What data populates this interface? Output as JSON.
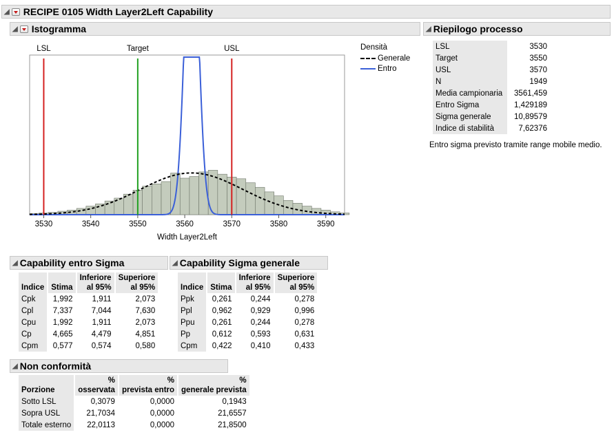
{
  "report": {
    "title": "RECIPE 0105 Width Layer2Left Capability"
  },
  "histogram": {
    "title": "Istogramma",
    "legend": {
      "title": "Densità",
      "items": [
        {
          "label": "Generale",
          "style": "dashed",
          "color": "#000000"
        },
        {
          "label": "Entro",
          "style": "solid",
          "color": "#3a5fd8"
        }
      ]
    },
    "ref_lines": {
      "LSL": {
        "label": "LSL",
        "value": 3530,
        "color": "#d42020"
      },
      "Target": {
        "label": "Target",
        "value": 3550,
        "color": "#20a020"
      },
      "USL": {
        "label": "USL",
        "value": 3570,
        "color": "#d42020"
      }
    }
  },
  "chart_data": {
    "type": "bar",
    "title": "",
    "xlabel": "Width Layer2Left",
    "ylabel": "",
    "xlim": [
      3527,
      3594
    ],
    "ylim": [
      0,
      0.28
    ],
    "x_ticks": [
      3530,
      3540,
      3550,
      3560,
      3570,
      3580,
      3590
    ],
    "bin_width": 2,
    "bin_edges_start": 3527,
    "values": [
      0.002,
      0.003,
      0.004,
      0.006,
      0.008,
      0.011,
      0.015,
      0.019,
      0.024,
      0.029,
      0.036,
      0.043,
      0.05,
      0.054,
      0.058,
      0.073,
      0.064,
      0.067,
      0.075,
      0.078,
      0.071,
      0.066,
      0.063,
      0.056,
      0.048,
      0.04,
      0.033,
      0.025,
      0.02,
      0.015,
      0.011,
      0.008,
      0.005,
      0.003
    ],
    "series": [
      {
        "name": "Generale",
        "mean": 3561.459,
        "sd": 10.89579
      },
      {
        "name": "Entro",
        "mean": 3561.459,
        "sd": 1.429189
      }
    ],
    "grid": false,
    "legend_position": "right"
  },
  "summary": {
    "title": "Riepilogo processo",
    "rows": [
      {
        "label": "LSL",
        "value": "3530"
      },
      {
        "label": "Target",
        "value": "3550"
      },
      {
        "label": "USL",
        "value": "3570"
      },
      {
        "label": "N",
        "value": "1949"
      },
      {
        "label": "Media campionaria",
        "value": "3561,459"
      },
      {
        "label": "Entro Sigma",
        "value": "1,429189"
      },
      {
        "label": "Sigma generale",
        "value": "10,89579"
      },
      {
        "label": "Indice di stabilità",
        "value": "7,62376"
      }
    ],
    "note": "Entro sigma previsto tramite range mobile medio."
  },
  "cap_within": {
    "title": "Capability entro Sigma",
    "headers": [
      "Indice",
      "Stima",
      "Inferiore al 95%",
      "Superiore al 95%"
    ],
    "rows": [
      [
        "Cpk",
        "1,992",
        "1,911",
        "2,073"
      ],
      [
        "Cpl",
        "7,337",
        "7,044",
        "7,630"
      ],
      [
        "Cpu",
        "1,992",
        "1,911",
        "2,073"
      ],
      [
        "Cp",
        "4,665",
        "4,479",
        "4,851"
      ],
      [
        "Cpm",
        "0,577",
        "0,574",
        "0,580"
      ]
    ]
  },
  "cap_overall": {
    "title": "Capability Sigma generale",
    "headers": [
      "Indice",
      "Stima",
      "Inferiore al 95%",
      "Superiore al 95%"
    ],
    "rows": [
      [
        "Ppk",
        "0,261",
        "0,244",
        "0,278"
      ],
      [
        "Ppl",
        "0,962",
        "0,929",
        "0,996"
      ],
      [
        "Ppu",
        "0,261",
        "0,244",
        "0,278"
      ],
      [
        "Pp",
        "0,612",
        "0,593",
        "0,631"
      ],
      [
        "Cpm",
        "0,422",
        "0,410",
        "0,433"
      ]
    ]
  },
  "nonconf": {
    "title": "Non conformità",
    "headers": [
      "Porzione",
      "% osservata",
      "% prevista entro",
      "% generale prevista"
    ],
    "rows": [
      [
        "Sotto LSL",
        "0,3079",
        "0,0000",
        "0,1943"
      ],
      [
        "Sopra USL",
        "21,7034",
        "0,0000",
        "21,6557"
      ],
      [
        "Totale esterno",
        "22,0113",
        "0,0000",
        "21,8500"
      ]
    ]
  }
}
